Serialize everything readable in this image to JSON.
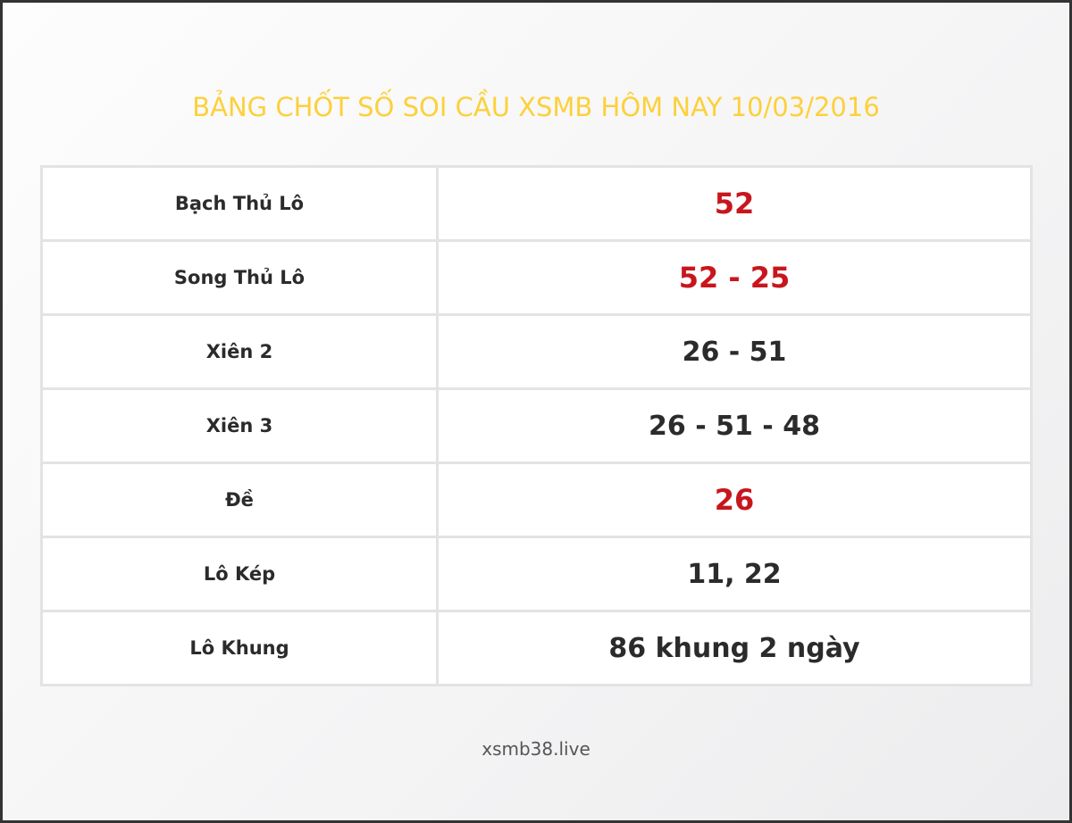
{
  "title": "BẢNG CHỐT SỐ SOI CẦU XSMB HÔM NAY 10/03/2016",
  "colors": {
    "title": "#fdd03b",
    "highlight": "#c8161d",
    "text": "#2b2b2b"
  },
  "rows": [
    {
      "label": "Bạch Thủ Lô",
      "value": "52",
      "highlight": true
    },
    {
      "label": "Song Thủ Lô",
      "value": "52 - 25",
      "highlight": true
    },
    {
      "label": "Xiên 2",
      "value": "26 - 51",
      "highlight": false
    },
    {
      "label": "Xiên 3",
      "value": "26 - 51 - 48",
      "highlight": false
    },
    {
      "label": "Đề",
      "value": "26",
      "highlight": true
    },
    {
      "label": "Lô Kép",
      "value": "11, 22",
      "highlight": false
    },
    {
      "label": "Lô Khung",
      "value": "86 khung 2 ngày",
      "highlight": false
    }
  ],
  "footer": "xsmb38.live"
}
